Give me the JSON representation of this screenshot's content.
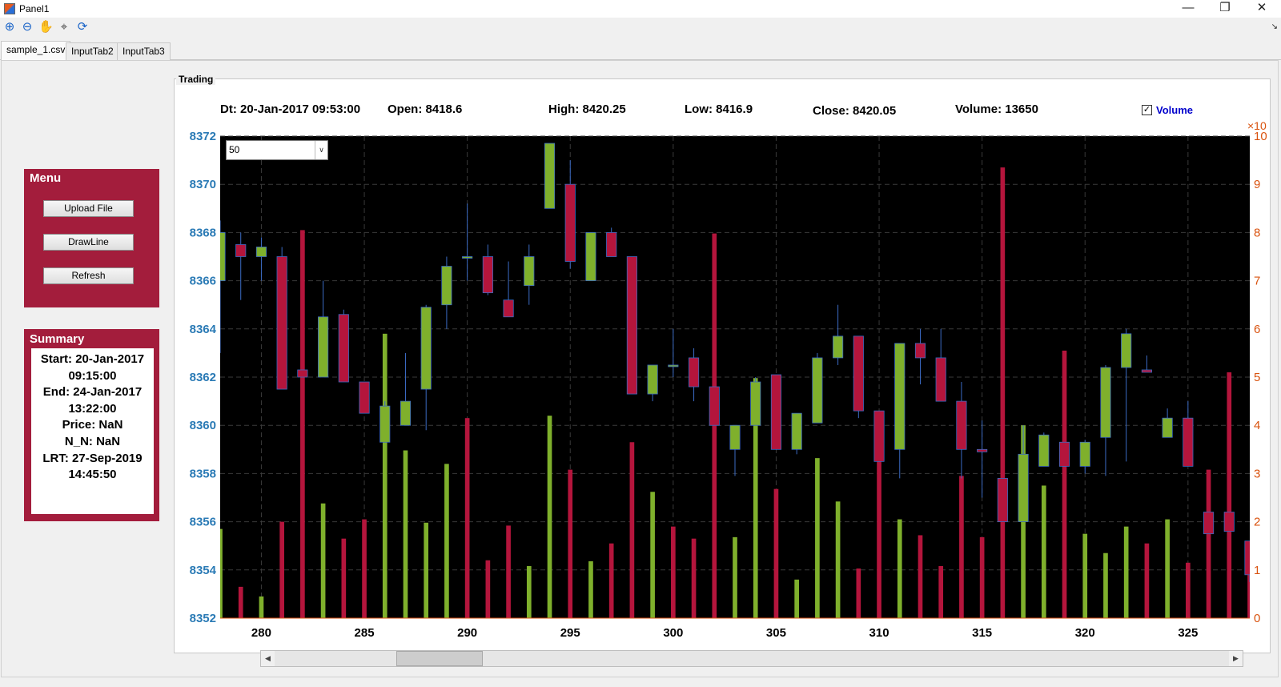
{
  "window": {
    "title": "Panel1",
    "minimize_glyph": "—",
    "restore_glyph": "❐",
    "close_glyph": "✕"
  },
  "toolbar": {
    "icons": [
      "zoom-in-icon",
      "zoom-out-icon",
      "pan-hand-icon",
      "data-cursor-icon",
      "rotate-3d-icon"
    ]
  },
  "tabs": [
    {
      "label": "sample_1.csv",
      "active": true
    },
    {
      "label": "InputTab2",
      "active": false
    },
    {
      "label": "InputTab3",
      "active": false
    }
  ],
  "menu": {
    "title": "Menu",
    "buttons": [
      "Upload File",
      "DrawLine",
      "Refresh"
    ]
  },
  "summary": {
    "title": "Summary",
    "lines": [
      "Start: 20-Jan-2017",
      "09:15:00",
      "End: 24-Jan-2017",
      "13:22:00",
      "Price: NaN",
      "N_N: NaN",
      "LRT: 27-Sep-2019",
      "14:45:50"
    ]
  },
  "trading": {
    "group_title": "Trading",
    "info": {
      "dt": "Dt: 20-Jan-2017 09:53:00",
      "open": "Open: 8418.6",
      "high": "High: 8420.25",
      "low": "Low: 8416.9",
      "close": "Close: 8420.05",
      "volume": "Volume: 13650"
    },
    "volume_checkbox": {
      "label": "Volume",
      "checked": true
    },
    "window_select": "50"
  },
  "colors": {
    "up": "#7fb02c",
    "down": "#b4153c",
    "left_axis": "#2a7ab5",
    "right_axis": "#d9520e",
    "panel": "#a31d3c",
    "plot_bg": "#000000"
  },
  "chart_data": {
    "type": "candlestick",
    "x_ticks": [
      280,
      285,
      290,
      295,
      300,
      305,
      310,
      315,
      320,
      325
    ],
    "xlim": [
      278,
      328
    ],
    "ylim_price": [
      8352,
      8372
    ],
    "y_ticks_price": [
      8352,
      8354,
      8356,
      8358,
      8360,
      8362,
      8364,
      8366,
      8368,
      8370,
      8372
    ],
    "ylim_volume": [
      0,
      10
    ],
    "y_ticks_volume": [
      0,
      1,
      2,
      3,
      4,
      5,
      6,
      7,
      8,
      9,
      10
    ],
    "volume_exponent_label": "×10",
    "grid": true,
    "candles": [
      {
        "x": 278,
        "o": 8366,
        "h": 8368.5,
        "l": 8363,
        "c": 8368
      },
      {
        "x": 279,
        "o": 8367.5,
        "h": 8368,
        "l": 8365.2,
        "c": 8367
      },
      {
        "x": 280,
        "o": 8367,
        "h": 8367.8,
        "l": 8366,
        "c": 8367.4
      },
      {
        "x": 281,
        "o": 8367,
        "h": 8367.4,
        "l": 8361.5,
        "c": 8361.5
      },
      {
        "x": 282,
        "o": 8362.3,
        "h": 8362.3,
        "l": 8362,
        "c": 8362
      },
      {
        "x": 283,
        "o": 8362,
        "h": 8366,
        "l": 8362,
        "c": 8364.5
      },
      {
        "x": 284,
        "o": 8364.6,
        "h": 8364.8,
        "l": 8361.8,
        "c": 8361.8
      },
      {
        "x": 285,
        "o": 8361.8,
        "h": 8361.8,
        "l": 8360.5,
        "c": 8360.5
      },
      {
        "x": 286,
        "o": 8359.3,
        "h": 8361,
        "l": 8359.3,
        "c": 8360.8
      },
      {
        "x": 287,
        "o": 8360,
        "h": 8363,
        "l": 8360,
        "c": 8361
      },
      {
        "x": 288,
        "o": 8361.5,
        "h": 8365,
        "l": 8359.8,
        "c": 8364.9
      },
      {
        "x": 289,
        "o": 8365,
        "h": 8367,
        "l": 8364,
        "c": 8366.6
      },
      {
        "x": 290,
        "o": 8367,
        "h": 8369.2,
        "l": 8366,
        "c": 8367
      },
      {
        "x": 291,
        "o": 8367,
        "h": 8367.5,
        "l": 8365.4,
        "c": 8365.5
      },
      {
        "x": 292,
        "o": 8365.2,
        "h": 8366.8,
        "l": 8364.5,
        "c": 8364.5
      },
      {
        "x": 293,
        "o": 8365.8,
        "h": 8367.5,
        "l": 8365,
        "c": 8367
      },
      {
        "x": 294,
        "o": 8369,
        "h": 8371.7,
        "l": 8369,
        "c": 8371.7
      },
      {
        "x": 295,
        "o": 8370,
        "h": 8371,
        "l": 8366.5,
        "c": 8366.8
      },
      {
        "x": 296,
        "o": 8366,
        "h": 8368,
        "l": 8366,
        "c": 8368
      },
      {
        "x": 297,
        "o": 8368,
        "h": 8368.2,
        "l": 8367,
        "c": 8367
      },
      {
        "x": 298,
        "o": 8367,
        "h": 8367,
        "l": 8361.3,
        "c": 8361.3
      },
      {
        "x": 299,
        "o": 8361.3,
        "h": 8362.5,
        "l": 8361,
        "c": 8362.5
      },
      {
        "x": 300,
        "o": 8362.5,
        "h": 8364,
        "l": 8362,
        "c": 8362.5
      },
      {
        "x": 301,
        "o": 8362.8,
        "h": 8363.2,
        "l": 8361,
        "c": 8361.6
      },
      {
        "x": 302,
        "o": 8361.6,
        "h": 8361.6,
        "l": 8360,
        "c": 8360
      },
      {
        "x": 303,
        "o": 8359,
        "h": 8360,
        "l": 8357.9,
        "c": 8360
      },
      {
        "x": 304,
        "o": 8360,
        "h": 8362,
        "l": 8360,
        "c": 8361.8
      },
      {
        "x": 305,
        "o": 8362.1,
        "h": 8362.1,
        "l": 8359,
        "c": 8359
      },
      {
        "x": 306,
        "o": 8359,
        "h": 8360.5,
        "l": 8358.8,
        "c": 8360.5
      },
      {
        "x": 307,
        "o": 8360.1,
        "h": 8363,
        "l": 8360.1,
        "c": 8362.8
      },
      {
        "x": 308,
        "o": 8362.8,
        "h": 8365,
        "l": 8362.5,
        "c": 8363.7
      },
      {
        "x": 309,
        "o": 8363.7,
        "h": 8363.7,
        "l": 8360.3,
        "c": 8360.6
      },
      {
        "x": 310,
        "o": 8360.6,
        "h": 8360.6,
        "l": 8358.5,
        "c": 8358.5
      },
      {
        "x": 311,
        "o": 8359,
        "h": 8363.4,
        "l": 8357.8,
        "c": 8363.4
      },
      {
        "x": 312,
        "o": 8363.4,
        "h": 8364,
        "l": 8361.7,
        "c": 8362.8
      },
      {
        "x": 313,
        "o": 8362.8,
        "h": 8364,
        "l": 8361,
        "c": 8361
      },
      {
        "x": 314,
        "o": 8361,
        "h": 8361.8,
        "l": 8357.8,
        "c": 8359
      },
      {
        "x": 315,
        "o": 8359,
        "h": 8360.2,
        "l": 8357,
        "c": 8358.9
      },
      {
        "x": 316,
        "o": 8357.8,
        "h": 8357.8,
        "l": 8356,
        "c": 8356
      },
      {
        "x": 317,
        "o": 8356,
        "h": 8360,
        "l": 8356,
        "c": 8358.8
      },
      {
        "x": 318,
        "o": 8358.3,
        "h": 8359.7,
        "l": 8358.3,
        "c": 8359.6
      },
      {
        "x": 319,
        "o": 8359.3,
        "h": 8359.3,
        "l": 8358.3,
        "c": 8358.3
      },
      {
        "x": 320,
        "o": 8358.3,
        "h": 8359.4,
        "l": 8358,
        "c": 8359.3
      },
      {
        "x": 321,
        "o": 8359.5,
        "h": 8362.5,
        "l": 8357.9,
        "c": 8362.4
      },
      {
        "x": 322,
        "o": 8362.4,
        "h": 8364,
        "l": 8358.5,
        "c": 8363.8
      },
      {
        "x": 323,
        "o": 8362.3,
        "h": 8362.9,
        "l": 8362.2,
        "c": 8362.2
      },
      {
        "x": 324,
        "o": 8359.5,
        "h": 8360.7,
        "l": 8359.5,
        "c": 8360.3
      },
      {
        "x": 325,
        "o": 8360.3,
        "h": 8361,
        "l": 8358.3,
        "c": 8358.3
      },
      {
        "x": 326,
        "o": 8356.4,
        "h": 8356.4,
        "l": 8355.5,
        "c": 8355.5
      },
      {
        "x": 327,
        "o": 8356.4,
        "h": 8356.4,
        "l": 8355.6,
        "c": 8355.6
      },
      {
        "x": 328,
        "o": 8355.2,
        "h": 8355.2,
        "l": 8353.5,
        "c": 8353.8
      }
    ],
    "volume_bars": [
      {
        "x": 278,
        "v": 1.85,
        "up": true
      },
      {
        "x": 279,
        "v": 0.65,
        "up": false
      },
      {
        "x": 280,
        "v": 0.45,
        "up": true
      },
      {
        "x": 281,
        "v": 2.0,
        "up": false
      },
      {
        "x": 282,
        "v": 8.05,
        "up": false
      },
      {
        "x": 283,
        "v": 2.38,
        "up": true
      },
      {
        "x": 284,
        "v": 1.65,
        "up": false
      },
      {
        "x": 285,
        "v": 2.05,
        "up": false
      },
      {
        "x": 286,
        "v": 5.9,
        "up": true
      },
      {
        "x": 287,
        "v": 3.48,
        "up": true
      },
      {
        "x": 288,
        "v": 1.98,
        "up": true
      },
      {
        "x": 289,
        "v": 3.2,
        "up": true
      },
      {
        "x": 290,
        "v": 4.15,
        "up": false
      },
      {
        "x": 291,
        "v": 1.2,
        "up": false
      },
      {
        "x": 292,
        "v": 1.92,
        "up": false
      },
      {
        "x": 293,
        "v": 1.08,
        "up": true
      },
      {
        "x": 294,
        "v": 4.2,
        "up": true
      },
      {
        "x": 295,
        "v": 3.08,
        "up": false
      },
      {
        "x": 296,
        "v": 1.18,
        "up": true
      },
      {
        "x": 297,
        "v": 1.55,
        "up": false
      },
      {
        "x": 298,
        "v": 3.65,
        "up": false
      },
      {
        "x": 299,
        "v": 2.62,
        "up": true
      },
      {
        "x": 300,
        "v": 1.9,
        "up": false
      },
      {
        "x": 301,
        "v": 1.65,
        "up": false
      },
      {
        "x": 302,
        "v": 7.98,
        "up": false
      },
      {
        "x": 303,
        "v": 1.68,
        "up": true
      },
      {
        "x": 304,
        "v": 4.98,
        "up": true
      },
      {
        "x": 305,
        "v": 2.68,
        "up": false
      },
      {
        "x": 306,
        "v": 0.8,
        "up": true
      },
      {
        "x": 307,
        "v": 3.32,
        "up": true
      },
      {
        "x": 308,
        "v": 2.42,
        "up": true
      },
      {
        "x": 309,
        "v": 1.03,
        "up": false
      },
      {
        "x": 310,
        "v": 4.15,
        "up": false
      },
      {
        "x": 311,
        "v": 2.05,
        "up": true
      },
      {
        "x": 312,
        "v": 1.72,
        "up": false
      },
      {
        "x": 313,
        "v": 1.08,
        "up": false
      },
      {
        "x": 314,
        "v": 2.95,
        "up": false
      },
      {
        "x": 315,
        "v": 1.68,
        "up": false
      },
      {
        "x": 316,
        "v": 9.35,
        "up": false
      },
      {
        "x": 317,
        "v": 4.0,
        "up": true
      },
      {
        "x": 318,
        "v": 2.75,
        "up": true
      },
      {
        "x": 319,
        "v": 5.55,
        "up": false
      },
      {
        "x": 320,
        "v": 1.75,
        "up": true
      },
      {
        "x": 321,
        "v": 1.35,
        "up": true
      },
      {
        "x": 322,
        "v": 1.9,
        "up": true
      },
      {
        "x": 323,
        "v": 1.55,
        "up": false
      },
      {
        "x": 324,
        "v": 2.05,
        "up": true
      },
      {
        "x": 325,
        "v": 1.15,
        "up": false
      },
      {
        "x": 326,
        "v": 3.08,
        "up": false
      },
      {
        "x": 327,
        "v": 5.1,
        "up": false
      },
      {
        "x": 328,
        "v": 1.55,
        "up": false
      }
    ]
  }
}
